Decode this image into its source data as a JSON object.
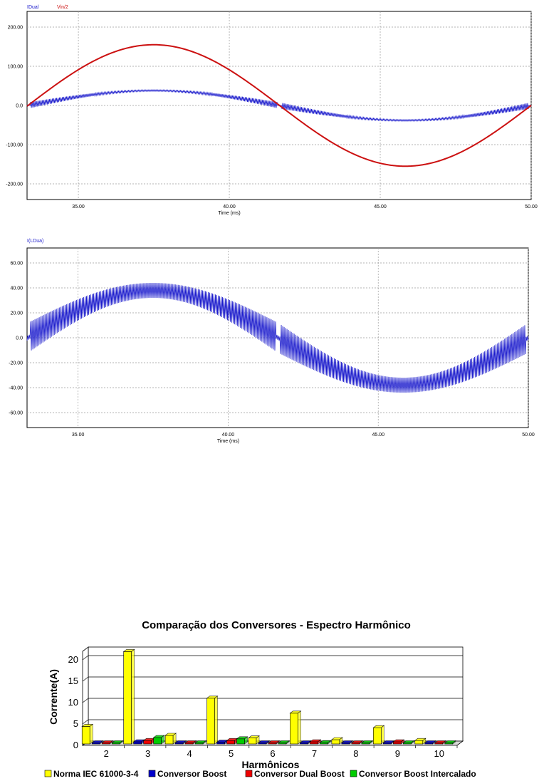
{
  "chart_data": [
    {
      "type": "line",
      "legend": [
        "IDual",
        "Vin/2"
      ],
      "series": [
        {
          "name": "IDual",
          "color": "#1a1acc",
          "amplitude": 38,
          "ripple": 8,
          "ripple_min": 2
        },
        {
          "name": "Vin/2",
          "color": "#cc1111",
          "amplitude": 155
        }
      ],
      "xlabel": "Time (ms)",
      "xlim": [
        33.3,
        50.0
      ],
      "xticks": [
        "35.00",
        "40.00",
        "45.00",
        "50.00"
      ],
      "xtick_values": [
        35,
        40,
        45,
        50
      ],
      "ylim": [
        -240,
        240
      ],
      "yticks": [
        "200.00",
        "100.00",
        "0.0",
        "-100.00",
        "-200.00"
      ],
      "ytick_values": [
        200,
        100,
        0,
        -100,
        -200
      ],
      "grid": true
    },
    {
      "type": "line",
      "legend": [
        "I(LDua)"
      ],
      "series": [
        {
          "name": "I(LDua)",
          "color": "#1a1acc",
          "amplitude": 38,
          "ripple": 12,
          "ripple_min": 6
        }
      ],
      "xlabel": "Time (ms)",
      "xlim": [
        33.3,
        50.0
      ],
      "xticks": [
        "35.00",
        "40.00",
        "45.00",
        "50.00"
      ],
      "xtick_values": [
        35,
        40,
        45,
        50
      ],
      "ylim": [
        -72,
        72
      ],
      "yticks": [
        "60.00",
        "40.00",
        "20.00",
        "0.0",
        "-20.00",
        "-40.00",
        "-60.00"
      ],
      "ytick_values": [
        60,
        40,
        20,
        0,
        -20,
        -40,
        -60
      ],
      "grid": true
    },
    {
      "type": "bar",
      "title": "Comparação dos Conversores - Espectro Harmônico",
      "xlabel": "Harmônicos",
      "ylabel": "Corrente(A)",
      "categories": [
        "2",
        "3",
        "4",
        "5",
        "6",
        "7",
        "8",
        "9",
        "10"
      ],
      "ylim": [
        0,
        22
      ],
      "yticks": [
        0,
        5,
        10,
        15,
        20
      ],
      "series": [
        {
          "name": "Norma IEC 61000-3-4",
          "color": "#ffff00",
          "values": [
            4.1,
            21.6,
            2.0,
            10.7,
            1.4,
            7.2,
            1.0,
            3.8,
            0.8
          ]
        },
        {
          "name": "Conversor Boost",
          "color": "#0000cc",
          "values": [
            0.2,
            0.5,
            0.1,
            0.4,
            0.1,
            0.2,
            0.1,
            0.2,
            0.1
          ]
        },
        {
          "name": "Conversor Dual Boost",
          "color": "#ee0000",
          "values": [
            0.2,
            0.8,
            0.1,
            0.8,
            0.1,
            0.5,
            0.1,
            0.5,
            0.1
          ]
        },
        {
          "name": "Conversor Boost Intercalado",
          "color": "#00cc00",
          "values": [
            0.2,
            1.5,
            0.1,
            1.2,
            0.1,
            0.3,
            0.1,
            0.2,
            0.1
          ]
        }
      ],
      "grid": true,
      "legend_position": "bottom"
    }
  ]
}
